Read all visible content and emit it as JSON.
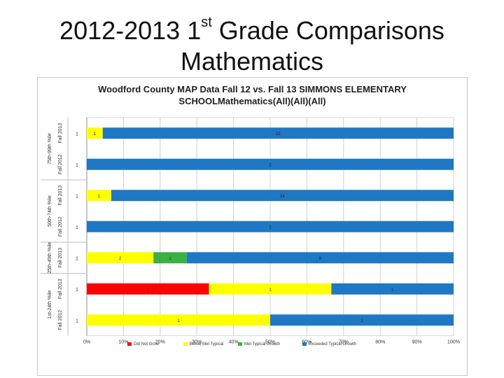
{
  "slide": {
    "title_line1_pre": "2012-2013 1",
    "title_line1_sup": "st",
    "title_line1_post": " Grade Comparisons",
    "title_line2": "Mathematics"
  },
  "chart_data": {
    "type": "bar",
    "orientation": "horizontal",
    "stacking": "percent",
    "title_line1": "Woodford County MAP Data Fall 12 vs. Fall 13 SIMMONS ELEMENTARY",
    "title_line2": "SCHOOLMathematics(All)(All)(All)",
    "x_ticks": [
      "0%",
      "10%",
      "20%",
      "30%",
      "40%",
      "50%",
      "60%",
      "70%",
      "80%",
      "90%",
      "100%"
    ],
    "xlim": [
      0,
      100
    ],
    "grid": "vertical",
    "legend_position": "bottom",
    "groups": [
      {
        "label": "75th-99th %ile",
        "rows": [
          0,
          1
        ]
      },
      {
        "label": "50th-74th %ile",
        "rows": [
          2,
          3
        ]
      },
      {
        "label": "25th-49th %ile",
        "rows": [
          4
        ]
      },
      {
        "label": "1st-24th %ile",
        "rows": [
          5,
          6
        ]
      }
    ],
    "rows": [
      {
        "label": "Fall 2013",
        "count": "1"
      },
      {
        "label": "Fall 2012",
        "count": "1"
      },
      {
        "label": "Fall 2013",
        "count": "1"
      },
      {
        "label": "Fall 2012",
        "count": "1"
      },
      {
        "label": "Fall 2013",
        "count": "1"
      },
      {
        "label": "Fall 2013",
        "count": "1"
      },
      {
        "label": "Fall 2012",
        "count": "1"
      }
    ],
    "series": [
      {
        "name": "Did Not Grow",
        "color": "#ff0000",
        "values": [
          0,
          0,
          0,
          0,
          0,
          1,
          0
        ],
        "labels": [
          "",
          "",
          "",
          "",
          "",
          "1",
          ""
        ]
      },
      {
        "name": "Below Met Typical",
        "color": "#ffff00",
        "values": [
          1,
          0,
          1,
          0,
          2,
          1,
          1
        ],
        "labels": [
          "1",
          "",
          "1",
          "",
          "2",
          "1",
          "1"
        ]
      },
      {
        "name": "Met Typical Growth",
        "color": "#3cb043",
        "values": [
          0,
          0,
          0,
          0,
          1,
          0,
          0
        ],
        "labels": [
          "",
          "",
          "",
          "",
          "1",
          "",
          ""
        ]
      },
      {
        "name": "Exceeded Typical Growth",
        "color": "#1f78c4",
        "values": [
          22,
          2,
          14,
          1,
          8,
          1,
          1
        ],
        "labels": [
          "22",
          "2",
          "14",
          "1",
          "8",
          "1",
          "1"
        ]
      }
    ]
  }
}
